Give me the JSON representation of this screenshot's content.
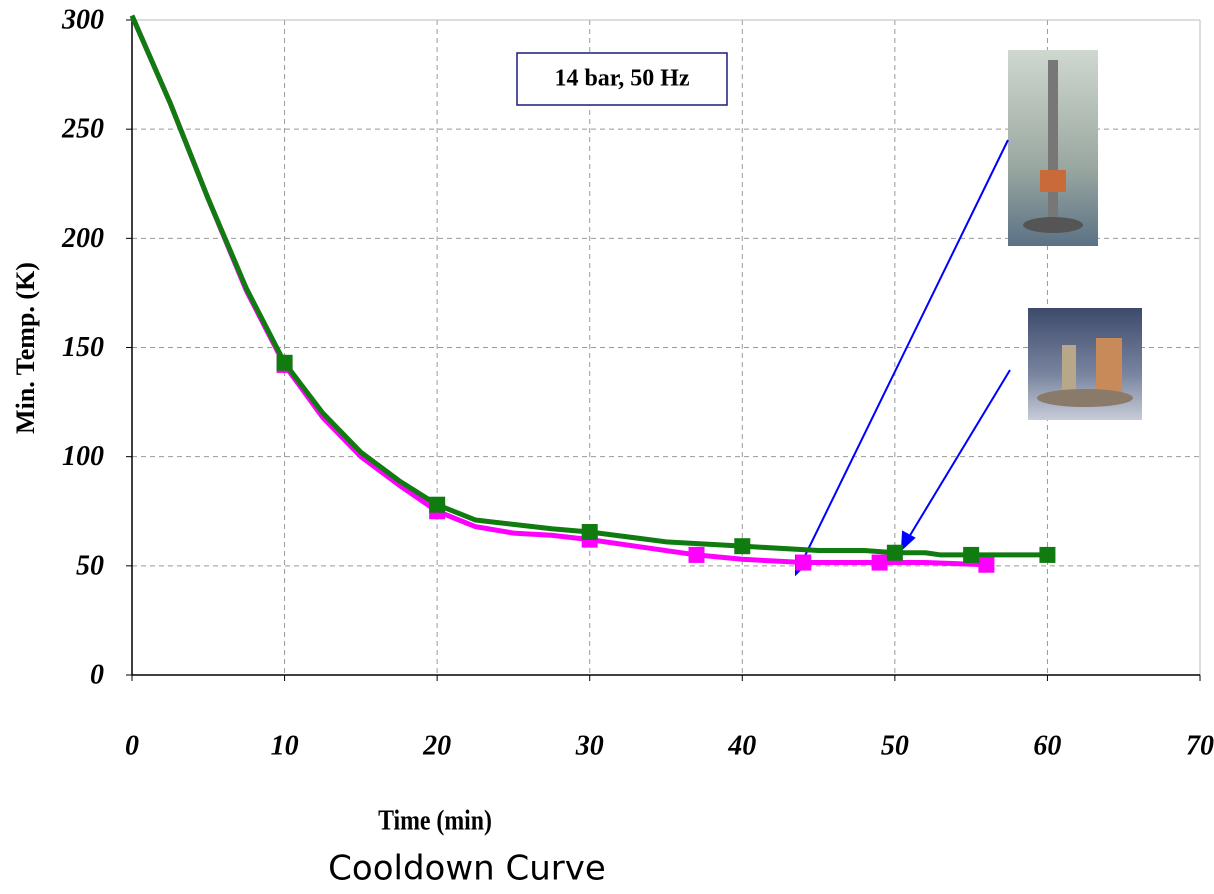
{
  "chart_data": {
    "type": "line",
    "xlabel": "Time (min)",
    "ylabel": "Min. Temp. (K)",
    "caption": "Cooldown Curve",
    "annotation": "14 bar, 50 Hz",
    "xlim": [
      0,
      70
    ],
    "xticks": [
      0,
      10,
      20,
      30,
      40,
      50,
      60,
      70
    ],
    "ylim": [
      0,
      300
    ],
    "yticks": [
      0,
      50,
      100,
      150,
      200,
      250,
      300
    ],
    "grid": true,
    "series": [
      {
        "color": "#ff00ff",
        "x": [
          0,
          2.5,
          5,
          7.5,
          10,
          12.5,
          15,
          17.5,
          20,
          22.5,
          25,
          27.5,
          30,
          35,
          37,
          40,
          44,
          49,
          52,
          56
        ],
        "values": [
          302,
          262,
          218,
          176,
          142,
          118,
          100,
          87,
          75,
          68,
          65,
          64,
          62,
          57,
          55,
          53,
          51.5,
          51.5,
          51.5,
          50.5
        ],
        "markers": {
          "x": [
            10,
            20,
            30,
            37,
            44,
            49,
            56
          ],
          "values": [
            142,
            75,
            62,
            55,
            51.5,
            51.5,
            50.5
          ]
        }
      },
      {
        "color": "#107c10",
        "x": [
          0,
          2.5,
          5,
          7.5,
          10,
          12.5,
          15,
          17.5,
          20,
          22.5,
          25,
          27.5,
          30,
          35,
          40,
          45,
          48,
          50,
          52,
          53,
          55,
          60
        ],
        "values": [
          302,
          262,
          218,
          177,
          143,
          120,
          102,
          89,
          78,
          71,
          69,
          67,
          65.5,
          61,
          59,
          57,
          57,
          56,
          56,
          55,
          55,
          55
        ],
        "markers": {
          "x": [
            10,
            20,
            30,
            40,
            50,
            55,
            60
          ],
          "values": [
            143,
            78,
            65.5,
            59,
            56,
            55,
            55
          ]
        }
      }
    ]
  }
}
